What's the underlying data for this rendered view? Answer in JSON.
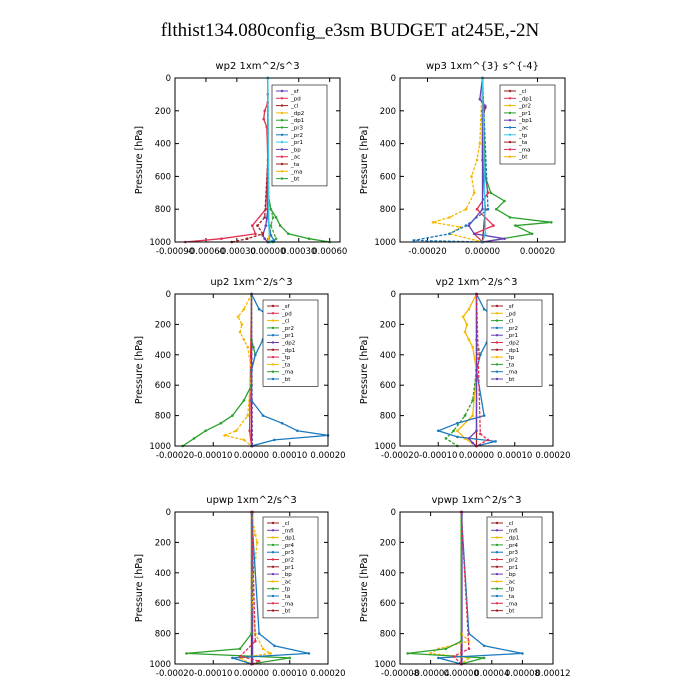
{
  "figure": {
    "title": "flthist134.080config_e3sm  BUDGET at245E,-2N"
  },
  "colors": {
    "frame": "#000000"
  },
  "chart_data": [
    {
      "type": "line",
      "id": "wp2",
      "title": "wp2   1xm^2/s^3",
      "ylabel": "Pressure  [hPa]",
      "xlim": [
        -0.0009,
        0.0007
      ],
      "ylim": [
        1000,
        0
      ],
      "xticks": [
        -0.0009,
        -0.0006,
        -0.0003,
        0.0,
        0.0003,
        0.0006
      ],
      "xtick_labels": [
        "-0.00090",
        "-0.00060",
        "-0.00030",
        "0.00000",
        "0.00030",
        "0.00060"
      ],
      "yticks": [
        0,
        200,
        400,
        600,
        800,
        1000
      ],
      "ytick_labels": [
        "0",
        "200",
        "400",
        "600",
        "800",
        "1000"
      ],
      "legend": [
        "_sf",
        "_pd",
        "_cl",
        "_dp2",
        "_dp1",
        "_pr3",
        "_pr2",
        "_pr1",
        "_bp",
        "_ac",
        "_ta",
        "_ma",
        "_bt"
      ],
      "series": [
        {
          "color": "#6a3fb4",
          "p": [
            0,
            100,
            500,
            800,
            900,
            960,
            980,
            1000
          ],
          "v": [
            0,
            0,
            0,
            0,
            -2e-05,
            -5e-05,
            -3e-05,
            0
          ]
        },
        {
          "color": "#e03050",
          "p": [
            0,
            150,
            200,
            250,
            300,
            500,
            800,
            900,
            950,
            980,
            1000
          ],
          "v": [
            0,
            0,
            -3e-05,
            -4e-05,
            -1e-05,
            0,
            -2e-05,
            -0.00015,
            -0.00012,
            -0.00045,
            -0.0008
          ]
        },
        {
          "color": "#a02020",
          "p": [
            0,
            500,
            850,
            900,
            950,
            980,
            1000
          ],
          "v": [
            0,
            0,
            -3e-05,
            -0.0001,
            -5e-05,
            -0.0002,
            -0.00035
          ]
        },
        {
          "color": "#f5b800",
          "p": [
            0,
            500,
            880,
            930,
            1000
          ],
          "v": [
            0,
            0,
            1e-05,
            2e-05,
            0
          ]
        },
        {
          "color": "#2ca02c",
          "p": [
            0,
            700,
            800,
            850,
            900,
            950,
            980,
            1000
          ],
          "v": [
            0,
            0,
            3e-05,
            8e-05,
            0.00012,
            0.0002,
            0.0004,
            0.0006
          ]
        },
        {
          "color": "#3aa83a",
          "p": [
            0,
            750,
            850,
            900,
            980,
            1000
          ],
          "v": [
            0,
            1e-05,
            5e-05,
            3e-05,
            8e-05,
            5e-05
          ]
        },
        {
          "color": "#1a7abf",
          "p": [
            0,
            850,
            960,
            990,
            1000
          ],
          "v": [
            0,
            0,
            3e-05,
            6e-05,
            0
          ]
        },
        {
          "color": "#3cc8e8",
          "p": [
            0,
            900,
            1000
          ],
          "v": [
            0,
            1e-05,
            2e-05
          ]
        }
      ]
    },
    {
      "type": "line",
      "id": "wp3",
      "title": "wp3   1xm^{3} s^{-4}",
      "ylabel": "Pressure  [hPa]",
      "xlim": [
        -0.0003,
        0.0003
      ],
      "ylim": [
        1000,
        0
      ],
      "xticks": [
        -0.0002,
        0.0,
        0.0002
      ],
      "xtick_labels": [
        "-0.00020",
        "0.00000",
        "0.00020"
      ],
      "yticks": [
        0,
        200,
        400,
        600,
        800,
        1000
      ],
      "ytick_labels": [
        "0",
        "200",
        "400",
        "600",
        "800",
        "1000"
      ],
      "legend": [
        "_cl",
        "_dp1",
        "_pr2",
        "_pr1",
        "_bp1",
        "_ac",
        "_tp",
        "_ta",
        "_ma",
        "_bt"
      ],
      "series": [
        {
          "color": "#a02020",
          "p": [
            0,
            150,
            180,
            250,
            500,
            800,
            1000
          ],
          "v": [
            0,
            0,
            1e-05,
            0,
            0,
            1e-05,
            0
          ]
        },
        {
          "color": "#e03050",
          "p": [
            0,
            500,
            700,
            800,
            900,
            950,
            1000
          ],
          "v": [
            0,
            0,
            2e-05,
            -2e-05,
            4e-05,
            -3e-05,
            0
          ]
        },
        {
          "color": "#f5b800",
          "p": [
            0,
            400,
            500,
            600,
            700,
            800,
            850,
            880,
            910,
            950,
            1000
          ],
          "v": [
            0,
            -1e-05,
            -2e-05,
            -4e-05,
            -3e-05,
            -6e-05,
            -0.00012,
            -0.00018,
            -8e-05,
            -0.00012,
            0
          ]
        },
        {
          "color": "#2ca02c",
          "p": [
            0,
            600,
            700,
            750,
            800,
            850,
            880,
            900,
            950,
            1000
          ],
          "v": [
            0,
            1e-05,
            3e-05,
            8e-05,
            5e-05,
            0.0001,
            0.00025,
            0.00012,
            0.00018,
            0
          ]
        },
        {
          "color": "#6a3fb4",
          "p": [
            0,
            130,
            170,
            200,
            800,
            900,
            950,
            980,
            1000
          ],
          "v": [
            0,
            -1e-05,
            1e-05,
            0,
            0,
            -5e-05,
            -3e-05,
            8e-05,
            0
          ]
        },
        {
          "color": "#1a7abf",
          "p": [
            0,
            800,
            900,
            950,
            990,
            1000
          ],
          "v": [
            0,
            2e-05,
            -6e-05,
            -0.00012,
            -0.00025,
            0
          ]
        },
        {
          "color": "#3cc8e8",
          "p": [
            0,
            950,
            1000
          ],
          "v": [
            0,
            1e-05,
            0
          ]
        }
      ]
    },
    {
      "type": "line",
      "id": "up2",
      "title": "up2   1xm^2/s^3",
      "ylabel": "Pressure  [hPa]",
      "xlim": [
        -0.0002,
        0.0002
      ],
      "ylim": [
        1000,
        0
      ],
      "xticks": [
        -0.0002,
        -0.0001,
        0.0,
        0.0001,
        0.0002
      ],
      "xtick_labels": [
        "-0.00020",
        "-0.00010",
        "0.00000",
        "0.00010",
        "0.00020"
      ],
      "yticks": [
        0,
        200,
        400,
        600,
        800,
        1000
      ],
      "ytick_labels": [
        "0",
        "200",
        "400",
        "600",
        "800",
        "1000"
      ],
      "legend": [
        "_sf",
        "_pd",
        "_cl",
        "_pr2",
        "_pr1",
        "_dp2",
        "_dp1",
        "_tp",
        "_ta",
        "_ma",
        "_bt"
      ],
      "series": [
        {
          "color": "#a02020",
          "p": [
            0,
            1000
          ],
          "v": [
            0,
            0
          ]
        },
        {
          "color": "#e03050",
          "p": [
            0,
            900,
            1000
          ],
          "v": [
            0,
            -5e-06,
            0
          ]
        },
        {
          "color": "#f5b800",
          "p": [
            0,
            100,
            150,
            200,
            250,
            300,
            350,
            500,
            800,
            900,
            930,
            960,
            1000
          ],
          "v": [
            0,
            -2e-05,
            -3.5e-05,
            -2.5e-05,
            -3e-05,
            -2e-05,
            -1e-05,
            0,
            -1e-05,
            -4e-05,
            -7e-05,
            -2e-05,
            0
          ]
        },
        {
          "color": "#2ca02c",
          "p": [
            0,
            300,
            350,
            400,
            500,
            600,
            700,
            800,
            850,
            900,
            950,
            1000
          ],
          "v": [
            0,
            0,
            5e-06,
            1e-05,
            0,
            0,
            -2e-05,
            -5e-05,
            -8e-05,
            -0.00012,
            -0.00015,
            -0.00018
          ]
        },
        {
          "color": "#1a7abf",
          "p": [
            0,
            100,
            150,
            200,
            300,
            400,
            500,
            700,
            800,
            850,
            900,
            930,
            960,
            1000
          ],
          "v": [
            0,
            2e-05,
            5e-05,
            4e-05,
            3e-05,
            1e-05,
            0,
            0,
            3e-05,
            8e-05,
            0.00012,
            0.0002,
            6e-05,
            0
          ]
        },
        {
          "color": "#6a3fb4",
          "p": [
            0,
            1000
          ],
          "v": [
            0,
            2e-06
          ]
        }
      ]
    },
    {
      "type": "line",
      "id": "vp2",
      "title": "vp2   1xm^2/s^3",
      "ylabel": "Pressure  [hPa]",
      "xlim": [
        -0.0002,
        0.0002
      ],
      "ylim": [
        1000,
        0
      ],
      "xticks": [
        -0.0002,
        -0.0001,
        0.0,
        0.0001,
        0.0002
      ],
      "xtick_labels": [
        "-0.00020",
        "-0.00010",
        "0.00000",
        "0.00010",
        "0.00020"
      ],
      "yticks": [
        0,
        200,
        400,
        600,
        800,
        1000
      ],
      "ytick_labels": [
        "0",
        "200",
        "400",
        "600",
        "800",
        "1000"
      ],
      "legend": [
        "_sf",
        "_pd",
        "_cl",
        "_pr2",
        "_pr1",
        "_dp2",
        "_dp1",
        "_tp",
        "_ta",
        "_ma",
        "_bt"
      ],
      "series": [
        {
          "color": "#a02020",
          "p": [
            0,
            1000
          ],
          "v": [
            0,
            0
          ]
        },
        {
          "color": "#f5b800",
          "p": [
            0,
            100,
            150,
            200,
            250,
            300,
            350,
            500,
            800,
            900,
            950,
            1000
          ],
          "v": [
            0,
            -2e-05,
            -3.5e-05,
            -2.5e-05,
            -3e-05,
            -2e-05,
            -1e-05,
            0,
            -1e-05,
            -5e-05,
            -3e-05,
            0
          ]
        },
        {
          "color": "#2ca02c",
          "p": [
            0,
            300,
            400,
            500,
            700,
            800,
            900,
            950,
            1000
          ],
          "v": [
            0,
            0,
            1e-05,
            0,
            -1e-05,
            -3e-05,
            -6e-05,
            -8e-05,
            -5e-05
          ]
        },
        {
          "color": "#1a7abf",
          "p": [
            0,
            100,
            150,
            200,
            300,
            400,
            500,
            800,
            850,
            900,
            940,
            970,
            1000
          ],
          "v": [
            0,
            2e-05,
            5e-05,
            4e-05,
            3e-05,
            1e-05,
            0,
            2e-05,
            -5e-05,
            -0.0001,
            -5e-05,
            5e-05,
            0
          ]
        },
        {
          "color": "#6a3fb4",
          "p": [
            0,
            900,
            950,
            980,
            1000
          ],
          "v": [
            0,
            0,
            -2e-05,
            -1e-05,
            0
          ]
        },
        {
          "color": "#e03050",
          "p": [
            0,
            920,
            960,
            1000
          ],
          "v": [
            0,
            1e-05,
            3e-05,
            0
          ]
        }
      ]
    },
    {
      "type": "line",
      "id": "upwp",
      "title": "upwp   1xm^2/s^3",
      "ylabel": "Pressure  [hPa]",
      "xlim": [
        -0.0002,
        0.0002
      ],
      "ylim": [
        1000,
        0
      ],
      "xticks": [
        -0.0002,
        -0.0001,
        0.0,
        0.0001,
        0.0002
      ],
      "xtick_labels": [
        "-0.00020",
        "-0.00010",
        "0.00000",
        "0.00010",
        "0.00020"
      ],
      "yticks": [
        0,
        200,
        400,
        600,
        800,
        1000
      ],
      "ytick_labels": [
        "0",
        "200",
        "400",
        "600",
        "800",
        "1000"
      ],
      "legend": [
        "_cl",
        "_mfl",
        "_dp1",
        "_pr4",
        "_pr3",
        "_pr2",
        "_pr1",
        "_bp",
        "_ac",
        "_tp",
        "_ta",
        "_ma",
        "_bt"
      ],
      "series": [
        {
          "color": "#a02020",
          "p": [
            0,
            1000
          ],
          "v": [
            0,
            0
          ]
        },
        {
          "color": "#6a3fb4",
          "p": [
            0,
            1000
          ],
          "v": [
            3e-06,
            3e-06
          ]
        },
        {
          "color": "#f5b800",
          "p": [
            0,
            150,
            200,
            300,
            400,
            500,
            800,
            900,
            930,
            960,
            1000
          ],
          "v": [
            0,
            1e-05,
            1.5e-05,
            1e-05,
            5e-06,
            0,
            1e-05,
            3e-05,
            5e-05,
            -3e-05,
            0
          ]
        },
        {
          "color": "#2ca02c",
          "p": [
            0,
            800,
            900,
            930,
            960,
            1000
          ],
          "v": [
            0,
            0,
            -3e-05,
            -0.00017,
            0.0001,
            0
          ]
        },
        {
          "color": "#1a7abf",
          "p": [
            0,
            800,
            880,
            930,
            960,
            1000
          ],
          "v": [
            0,
            2e-05,
            6e-05,
            0.00015,
            -5e-05,
            0
          ]
        },
        {
          "color": "#e03050",
          "p": [
            0,
            850,
            950,
            980,
            1000
          ],
          "v": [
            0,
            1e-05,
            -3e-05,
            2e-05,
            0
          ]
        }
      ]
    },
    {
      "type": "line",
      "id": "vpwp",
      "title": "vpwp   1xm^2/s^3",
      "ylabel": "Pressure  [hPa]",
      "xlim": [
        -8e-05,
        0.00012
      ],
      "ylim": [
        1000,
        0
      ],
      "xticks": [
        -8e-05,
        -4e-05,
        0.0,
        4e-05,
        8e-05,
        0.00012
      ],
      "xtick_labels": [
        "-0.00008",
        "-0.00004",
        "0.00000",
        "0.00004",
        "0.00008",
        "0.00012"
      ],
      "yticks": [
        0,
        200,
        400,
        600,
        800,
        1000
      ],
      "ytick_labels": [
        "0",
        "200",
        "400",
        "600",
        "800",
        "1000"
      ],
      "legend": [
        "_cl",
        "_mfl",
        "_dp1",
        "_pr4",
        "_pr3",
        "_pr2",
        "_pr1",
        "_bp",
        "_ac",
        "_tp",
        "_ta",
        "_ma",
        "_bt"
      ],
      "series": [
        {
          "color": "#a02020",
          "p": [
            0,
            1000
          ],
          "v": [
            0,
            0
          ]
        },
        {
          "color": "#6a3fb4",
          "p": [
            0,
            1000
          ],
          "v": [
            1e-06,
            1e-06
          ]
        },
        {
          "color": "#f5b800",
          "p": [
            0,
            800,
            850,
            900,
            930,
            960,
            1000
          ],
          "v": [
            0,
            0,
            1e-05,
            -3e-05,
            -4e-05,
            1e-05,
            0
          ]
        },
        {
          "color": "#2ca02c",
          "p": [
            0,
            850,
            900,
            930,
            960,
            1000
          ],
          "v": [
            0,
            0,
            -2e-05,
            -7e-05,
            3e-05,
            0
          ]
        },
        {
          "color": "#1a7abf",
          "p": [
            0,
            800,
            880,
            930,
            960,
            1000
          ],
          "v": [
            0,
            1e-05,
            3e-05,
            8e-05,
            -3e-05,
            0
          ]
        },
        {
          "color": "#e03050",
          "p": [
            0,
            900,
            950,
            1000
          ],
          "v": [
            0,
            1e-05,
            -1e-05,
            0
          ]
        }
      ]
    }
  ]
}
